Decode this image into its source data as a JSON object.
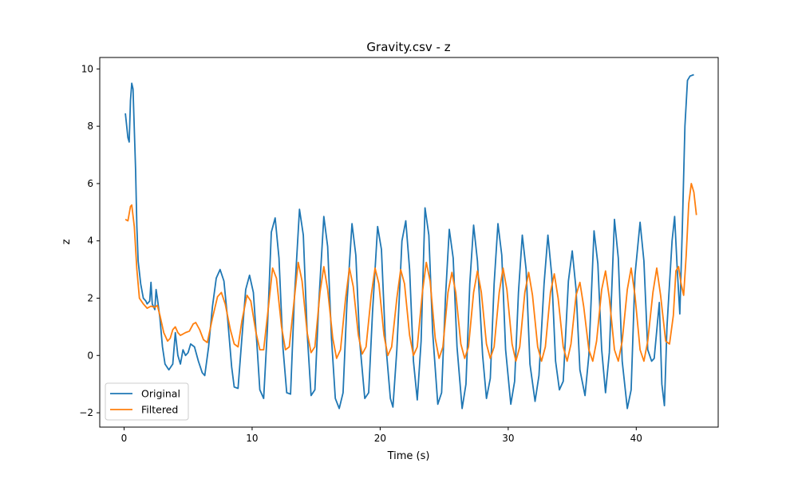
{
  "chart_data": {
    "type": "line",
    "title": "Gravity.csv - z",
    "xlabel": "Time (s)",
    "ylabel": "z",
    "xlim": [
      -1.9,
      46.4
    ],
    "ylim": [
      -2.5,
      10.4
    ],
    "xticks": [
      0,
      10,
      20,
      30,
      40
    ],
    "yticks": [
      -2,
      0,
      2,
      4,
      6,
      8,
      10
    ],
    "grid": false,
    "legend_position": "lower-left",
    "series": [
      {
        "name": "Original",
        "color": "#1f77b4",
        "points": [
          [
            0.1,
            8.45
          ],
          [
            0.3,
            7.6
          ],
          [
            0.4,
            7.45
          ],
          [
            0.5,
            8.9
          ],
          [
            0.6,
            9.5
          ],
          [
            0.7,
            9.3
          ],
          [
            0.9,
            6.5
          ],
          [
            1.0,
            4.5
          ],
          [
            1.1,
            3.3
          ],
          [
            1.3,
            2.5
          ],
          [
            1.5,
            2.0
          ],
          [
            1.7,
            1.9
          ],
          [
            1.8,
            1.8
          ],
          [
            2.0,
            1.9
          ],
          [
            2.1,
            2.55
          ],
          [
            2.2,
            1.8
          ],
          [
            2.4,
            1.6
          ],
          [
            2.5,
            2.3
          ],
          [
            2.6,
            2.0
          ],
          [
            2.8,
            1.3
          ],
          [
            3.0,
            0.3
          ],
          [
            3.2,
            -0.3
          ],
          [
            3.5,
            -0.5
          ],
          [
            3.8,
            -0.3
          ],
          [
            4.0,
            0.8
          ],
          [
            4.2,
            0.0
          ],
          [
            4.4,
            -0.3
          ],
          [
            4.6,
            0.2
          ],
          [
            4.8,
            0.0
          ],
          [
            5.0,
            0.1
          ],
          [
            5.2,
            0.4
          ],
          [
            5.5,
            0.3
          ],
          [
            5.8,
            -0.2
          ],
          [
            6.1,
            -0.6
          ],
          [
            6.3,
            -0.7
          ],
          [
            6.6,
            0.3
          ],
          [
            6.9,
            1.7
          ],
          [
            7.2,
            2.7
          ],
          [
            7.5,
            3.0
          ],
          [
            7.8,
            2.6
          ],
          [
            8.1,
            1.2
          ],
          [
            8.4,
            -0.4
          ],
          [
            8.6,
            -1.1
          ],
          [
            8.9,
            -1.15
          ],
          [
            9.2,
            0.6
          ],
          [
            9.5,
            2.3
          ],
          [
            9.8,
            2.8
          ],
          [
            10.1,
            2.2
          ],
          [
            10.4,
            0.2
          ],
          [
            10.6,
            -1.2
          ],
          [
            10.9,
            -1.5
          ],
          [
            11.2,
            1.0
          ],
          [
            11.5,
            4.3
          ],
          [
            11.8,
            4.8
          ],
          [
            12.1,
            3.4
          ],
          [
            12.4,
            0.3
          ],
          [
            12.7,
            -1.3
          ],
          [
            13.0,
            -1.35
          ],
          [
            13.3,
            2.0
          ],
          [
            13.7,
            5.1
          ],
          [
            14.0,
            4.2
          ],
          [
            14.3,
            0.8
          ],
          [
            14.6,
            -1.4
          ],
          [
            14.9,
            -1.2
          ],
          [
            15.2,
            1.8
          ],
          [
            15.6,
            4.85
          ],
          [
            15.9,
            3.8
          ],
          [
            16.2,
            0.6
          ],
          [
            16.5,
            -1.5
          ],
          [
            16.8,
            -1.85
          ],
          [
            17.1,
            -1.3
          ],
          [
            17.4,
            1.8
          ],
          [
            17.8,
            4.6
          ],
          [
            18.1,
            3.5
          ],
          [
            18.4,
            0.5
          ],
          [
            18.8,
            -1.5
          ],
          [
            19.1,
            -1.3
          ],
          [
            19.4,
            1.5
          ],
          [
            19.8,
            4.5
          ],
          [
            20.1,
            3.7
          ],
          [
            20.4,
            0.6
          ],
          [
            20.8,
            -1.5
          ],
          [
            21.0,
            -1.8
          ],
          [
            21.3,
            0.2
          ],
          [
            21.7,
            4.0
          ],
          [
            22.0,
            4.7
          ],
          [
            22.3,
            3.0
          ],
          [
            22.6,
            -0.2
          ],
          [
            22.9,
            -1.55
          ],
          [
            23.2,
            0.5
          ],
          [
            23.5,
            5.15
          ],
          [
            23.8,
            4.2
          ],
          [
            24.1,
            0.8
          ],
          [
            24.5,
            -1.7
          ],
          [
            24.8,
            -1.3
          ],
          [
            25.1,
            2.0
          ],
          [
            25.4,
            4.4
          ],
          [
            25.7,
            3.4
          ],
          [
            26.0,
            0.3
          ],
          [
            26.4,
            -1.85
          ],
          [
            26.7,
            -1.0
          ],
          [
            27.0,
            2.5
          ],
          [
            27.3,
            4.55
          ],
          [
            27.6,
            3.3
          ],
          [
            28.0,
            0.0
          ],
          [
            28.3,
            -1.5
          ],
          [
            28.6,
            -0.8
          ],
          [
            28.9,
            2.5
          ],
          [
            29.2,
            4.6
          ],
          [
            29.5,
            3.5
          ],
          [
            29.8,
            0.2
          ],
          [
            30.2,
            -1.7
          ],
          [
            30.5,
            -0.9
          ],
          [
            30.8,
            2.2
          ],
          [
            31.1,
            4.2
          ],
          [
            31.4,
            3.0
          ],
          [
            31.7,
            -0.3
          ],
          [
            32.1,
            -1.6
          ],
          [
            32.4,
            -0.7
          ],
          [
            32.8,
            2.5
          ],
          [
            33.1,
            4.2
          ],
          [
            33.4,
            2.8
          ],
          [
            33.7,
            -0.2
          ],
          [
            34.0,
            -1.2
          ],
          [
            34.3,
            -0.9
          ],
          [
            34.7,
            2.6
          ],
          [
            35.0,
            3.65
          ],
          [
            35.3,
            2.3
          ],
          [
            35.6,
            -0.5
          ],
          [
            36.0,
            -1.4
          ],
          [
            36.3,
            0.0
          ],
          [
            36.7,
            4.35
          ],
          [
            37.0,
            3.2
          ],
          [
            37.3,
            0.2
          ],
          [
            37.6,
            -1.3
          ],
          [
            37.9,
            0.1
          ],
          [
            38.3,
            4.75
          ],
          [
            38.6,
            3.4
          ],
          [
            38.9,
            -0.2
          ],
          [
            39.3,
            -1.85
          ],
          [
            39.6,
            -1.2
          ],
          [
            39.9,
            2.8
          ],
          [
            40.3,
            4.65
          ],
          [
            40.6,
            3.3
          ],
          [
            40.9,
            0.2
          ],
          [
            41.2,
            -0.2
          ],
          [
            41.4,
            -0.1
          ],
          [
            41.8,
            1.85
          ],
          [
            42.0,
            -1.0
          ],
          [
            42.2,
            -1.75
          ],
          [
            42.4,
            1.0
          ],
          [
            42.8,
            4.0
          ],
          [
            43.0,
            4.85
          ],
          [
            43.2,
            3.0
          ],
          [
            43.4,
            1.45
          ],
          [
            43.6,
            4.5
          ],
          [
            43.8,
            8.0
          ],
          [
            44.0,
            9.6
          ],
          [
            44.2,
            9.75
          ],
          [
            44.5,
            9.8
          ]
        ]
      },
      {
        "name": "Filtered",
        "color": "#ff7f0e",
        "points": [
          [
            0.1,
            4.75
          ],
          [
            0.3,
            4.7
          ],
          [
            0.5,
            5.2
          ],
          [
            0.6,
            5.25
          ],
          [
            0.8,
            4.5
          ],
          [
            1.0,
            3.0
          ],
          [
            1.2,
            2.0
          ],
          [
            1.5,
            1.8
          ],
          [
            1.8,
            1.65
          ],
          [
            2.1,
            1.72
          ],
          [
            2.4,
            1.68
          ],
          [
            2.6,
            1.75
          ],
          [
            2.8,
            1.4
          ],
          [
            3.1,
            0.8
          ],
          [
            3.4,
            0.5
          ],
          [
            3.6,
            0.6
          ],
          [
            3.8,
            0.9
          ],
          [
            4.0,
            1.0
          ],
          [
            4.2,
            0.8
          ],
          [
            4.4,
            0.7
          ],
          [
            4.6,
            0.75
          ],
          [
            4.8,
            0.8
          ],
          [
            5.1,
            0.85
          ],
          [
            5.4,
            1.1
          ],
          [
            5.6,
            1.15
          ],
          [
            5.9,
            0.9
          ],
          [
            6.2,
            0.55
          ],
          [
            6.5,
            0.45
          ],
          [
            6.9,
            1.3
          ],
          [
            7.3,
            2.05
          ],
          [
            7.6,
            2.2
          ],
          [
            7.9,
            1.8
          ],
          [
            8.3,
            0.9
          ],
          [
            8.6,
            0.4
          ],
          [
            8.9,
            0.3
          ],
          [
            9.2,
            1.2
          ],
          [
            9.6,
            2.1
          ],
          [
            9.9,
            1.9
          ],
          [
            10.3,
            0.8
          ],
          [
            10.6,
            0.2
          ],
          [
            10.9,
            0.2
          ],
          [
            11.3,
            1.8
          ],
          [
            11.6,
            3.05
          ],
          [
            11.9,
            2.7
          ],
          [
            12.3,
            1.0
          ],
          [
            12.6,
            0.2
          ],
          [
            12.9,
            0.3
          ],
          [
            13.3,
            2.0
          ],
          [
            13.6,
            3.25
          ],
          [
            13.9,
            2.6
          ],
          [
            14.3,
            0.8
          ],
          [
            14.6,
            0.1
          ],
          [
            14.9,
            0.3
          ],
          [
            15.3,
            2.2
          ],
          [
            15.6,
            3.1
          ],
          [
            15.9,
            2.3
          ],
          [
            16.3,
            0.6
          ],
          [
            16.6,
            -0.1
          ],
          [
            16.9,
            0.2
          ],
          [
            17.3,
            2.0
          ],
          [
            17.6,
            3.05
          ],
          [
            17.9,
            2.4
          ],
          [
            18.3,
            0.7
          ],
          [
            18.6,
            0.05
          ],
          [
            18.9,
            0.3
          ],
          [
            19.3,
            2.1
          ],
          [
            19.6,
            3.05
          ],
          [
            19.9,
            2.5
          ],
          [
            20.3,
            0.7
          ],
          [
            20.6,
            0.0
          ],
          [
            20.9,
            0.3
          ],
          [
            21.3,
            2.0
          ],
          [
            21.6,
            3.0
          ],
          [
            21.9,
            2.5
          ],
          [
            22.3,
            0.7
          ],
          [
            22.6,
            0.0
          ],
          [
            22.9,
            0.3
          ],
          [
            23.3,
            2.2
          ],
          [
            23.6,
            3.25
          ],
          [
            23.9,
            2.6
          ],
          [
            24.3,
            0.6
          ],
          [
            24.6,
            -0.1
          ],
          [
            24.9,
            0.3
          ],
          [
            25.3,
            2.2
          ],
          [
            25.6,
            2.9
          ],
          [
            25.9,
            2.2
          ],
          [
            26.3,
            0.4
          ],
          [
            26.6,
            -0.1
          ],
          [
            26.9,
            0.3
          ],
          [
            27.3,
            2.2
          ],
          [
            27.6,
            2.95
          ],
          [
            27.9,
            2.2
          ],
          [
            28.3,
            0.4
          ],
          [
            28.6,
            -0.1
          ],
          [
            28.9,
            0.3
          ],
          [
            29.3,
            2.2
          ],
          [
            29.6,
            3.05
          ],
          [
            29.9,
            2.3
          ],
          [
            30.3,
            0.4
          ],
          [
            30.6,
            -0.2
          ],
          [
            30.9,
            0.3
          ],
          [
            31.3,
            2.2
          ],
          [
            31.6,
            2.9
          ],
          [
            31.9,
            2.1
          ],
          [
            32.3,
            0.3
          ],
          [
            32.6,
            -0.2
          ],
          [
            32.9,
            0.3
          ],
          [
            33.3,
            2.2
          ],
          [
            33.6,
            2.85
          ],
          [
            33.9,
            2.0
          ],
          [
            34.3,
            0.3
          ],
          [
            34.6,
            -0.2
          ],
          [
            34.9,
            0.4
          ],
          [
            35.3,
            2.1
          ],
          [
            35.6,
            2.55
          ],
          [
            35.9,
            1.7
          ],
          [
            36.3,
            0.2
          ],
          [
            36.6,
            -0.2
          ],
          [
            36.9,
            0.5
          ],
          [
            37.3,
            2.3
          ],
          [
            37.6,
            2.95
          ],
          [
            37.9,
            2.0
          ],
          [
            38.3,
            0.2
          ],
          [
            38.6,
            -0.2
          ],
          [
            38.9,
            0.5
          ],
          [
            39.3,
            2.3
          ],
          [
            39.6,
            3.05
          ],
          [
            39.9,
            2.1
          ],
          [
            40.3,
            0.2
          ],
          [
            40.6,
            -0.2
          ],
          [
            40.9,
            0.5
          ],
          [
            41.3,
            2.2
          ],
          [
            41.6,
            3.05
          ],
          [
            41.9,
            2.1
          ],
          [
            42.3,
            0.5
          ],
          [
            42.6,
            0.4
          ],
          [
            42.9,
            1.4
          ],
          [
            43.1,
            2.95
          ],
          [
            43.3,
            3.1
          ],
          [
            43.5,
            2.5
          ],
          [
            43.7,
            2.1
          ],
          [
            43.9,
            3.5
          ],
          [
            44.1,
            5.3
          ],
          [
            44.3,
            6.0
          ],
          [
            44.5,
            5.7
          ],
          [
            44.7,
            4.9
          ]
        ]
      }
    ]
  }
}
